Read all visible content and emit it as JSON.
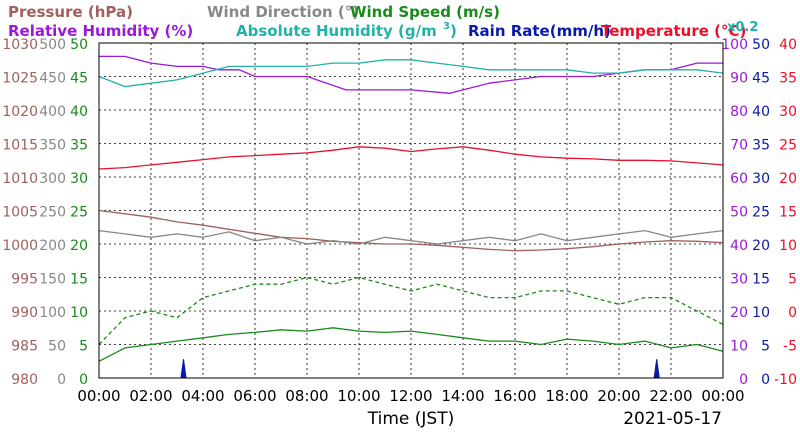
{
  "header": {
    "row1": [
      {
        "text": "Pressure (hPa)",
        "color": "#a0605e"
      },
      {
        "text": "Wind Direction (°)",
        "color": "#888888"
      },
      {
        "text": "Wind Speed (m/s)",
        "color": "#1a8a1a"
      }
    ],
    "row2": [
      {
        "text": "Relative Humidity (%)",
        "color": "#9a19d8"
      },
      {
        "text": "Absolute Humidity (g/m",
        "color": "#20b2aa"
      },
      {
        "text": "3",
        "color": "#20b2aa"
      },
      {
        "text": ")",
        "color": "#20b2aa"
      },
      {
        "text": "Rain Rate(mm/h)",
        "color": "#0a1aa8"
      },
      {
        "text": "Temperature (°C)",
        "color": "#e8102a"
      }
    ],
    "abs_humidity_scale": "x0.2"
  },
  "chart_data": {
    "type": "line",
    "xlabel": "Time (JST)",
    "date": "2021-05-17",
    "x_ticks": [
      "00:00",
      "02:00",
      "04:00",
      "06:00",
      "08:00",
      "10:00",
      "12:00",
      "14:00",
      "16:00",
      "18:00",
      "20:00",
      "22:00",
      "00:00"
    ],
    "x_range_hours": [
      0,
      24
    ],
    "grid": true,
    "axes": {
      "pressure": {
        "ticks": [
          "980",
          "985",
          "990",
          "995",
          "1000",
          "1005",
          "1010",
          "1015",
          "1020",
          "1025",
          "1030"
        ],
        "range": [
          980,
          1030
        ],
        "color": "#a0605e"
      },
      "wind_direction": {
        "ticks": [
          "0",
          "50",
          "100",
          "150",
          "200",
          "250",
          "300",
          "350",
          "400",
          "450",
          "500"
        ],
        "range": [
          0,
          500
        ],
        "color": "#888888"
      },
      "wind_speed": {
        "ticks": [
          "0",
          "5",
          "10",
          "15",
          "20",
          "25",
          "30",
          "35",
          "40",
          "45",
          "50"
        ],
        "range": [
          0,
          50
        ],
        "color": "#1a8a1a"
      },
      "relative_humidity": {
        "ticks": [
          "0",
          "10",
          "20",
          "30",
          "40",
          "50",
          "60",
          "70",
          "80",
          "90",
          "100"
        ],
        "range": [
          0,
          100
        ],
        "color": "#9a19d8"
      },
      "rain_rate": {
        "ticks": [
          "0",
          "5",
          "10",
          "15",
          "20",
          "25",
          "30",
          "35",
          "40",
          "45",
          "50"
        ],
        "range": [
          0,
          50
        ],
        "color": "#0a1aa8"
      },
      "temperature": {
        "ticks": [
          "-10",
          "-5",
          "0",
          "5",
          "10",
          "15",
          "20",
          "25",
          "30",
          "35",
          "40"
        ],
        "range": [
          -10,
          40
        ],
        "color": "#e8102a"
      }
    },
    "series": [
      {
        "key": "relative_humidity",
        "color": "#9a19d8",
        "axis": "relative_humidity",
        "x": [
          0,
          1,
          2,
          3,
          4,
          4.6,
          5.4,
          6,
          7,
          8,
          9.5,
          10.5,
          12,
          13.5,
          14,
          15,
          17,
          19,
          20,
          21,
          22,
          23,
          24
        ],
        "y": [
          96,
          96,
          94,
          93,
          93,
          92,
          92,
          90,
          90,
          90,
          86,
          86,
          86,
          85,
          86,
          88,
          90,
          90,
          91,
          92,
          92,
          94,
          94
        ]
      },
      {
        "key": "absolute_humidity",
        "color": "#20b2aa",
        "axis": "relative_humidity",
        "x": [
          0,
          1,
          2,
          3,
          3.5,
          4,
          5,
          6,
          7,
          8,
          9,
          10,
          11,
          12,
          13,
          14,
          15,
          16,
          17,
          18,
          19,
          20,
          21,
          22,
          23,
          24
        ],
        "y": [
          90,
          87,
          88,
          89,
          90,
          91,
          93,
          93,
          93,
          93,
          94,
          94,
          95,
          95,
          94,
          93,
          92,
          92,
          92,
          92,
          91,
          91,
          92,
          92,
          92,
          91
        ]
      },
      {
        "key": "temperature",
        "color": "#e8102a",
        "axis": "temperature",
        "x": [
          0,
          1,
          2,
          3,
          4,
          5,
          6,
          7,
          8,
          9,
          10,
          11,
          12,
          13,
          14,
          15,
          16,
          17,
          18,
          19,
          20,
          21,
          22,
          23,
          24
        ],
        "y": [
          21.2,
          21.4,
          21.8,
          22.2,
          22.6,
          23.0,
          23.2,
          23.4,
          23.6,
          24.0,
          24.5,
          24.3,
          23.8,
          24.2,
          24.5,
          24.0,
          23.4,
          23.0,
          22.8,
          22.7,
          22.5,
          22.5,
          22.4,
          22.1,
          21.8
        ]
      },
      {
        "key": "pressure",
        "color": "#a0605e",
        "axis": "pressure",
        "x": [
          0,
          1,
          2,
          3,
          4,
          5,
          6,
          7,
          8,
          9,
          10,
          11,
          12,
          13,
          14,
          15,
          16,
          17,
          18,
          19,
          20,
          21,
          22,
          23,
          24
        ],
        "y": [
          1005,
          1004.5,
          1004,
          1003.3,
          1002.8,
          1002.2,
          1001.6,
          1001,
          1000.8,
          1000.4,
          1000.2,
          1000,
          1000,
          999.8,
          999.5,
          999.2,
          999.0,
          999.1,
          999.3,
          999.6,
          1000,
          1000.3,
          1000.5,
          1000.4,
          1000.2
        ]
      },
      {
        "key": "wind_direction",
        "color": "#888888",
        "axis": "wind_direction",
        "x": [
          0,
          1,
          2,
          3,
          4,
          5,
          6,
          7,
          8,
          9,
          10,
          11,
          12,
          13,
          14,
          15,
          16,
          17,
          18,
          19,
          20,
          21,
          22,
          23,
          24
        ],
        "y": [
          220,
          215,
          210,
          215,
          210,
          218,
          205,
          210,
          200,
          205,
          200,
          210,
          205,
          200,
          205,
          210,
          205,
          215,
          205,
          210,
          215,
          220,
          210,
          215,
          220
        ]
      },
      {
        "key": "wind_speed_avg",
        "color": "#1a8a1a",
        "axis": "wind_speed",
        "dash": false,
        "x": [
          0,
          1,
          2,
          3,
          4,
          5,
          6,
          7,
          8,
          9,
          10,
          11,
          12,
          13,
          14,
          15,
          16,
          17,
          18,
          19,
          20,
          21,
          22,
          23,
          24
        ],
        "y": [
          2.5,
          4.5,
          5.0,
          5.5,
          6.0,
          6.5,
          6.8,
          7.2,
          7.0,
          7.5,
          7.0,
          6.8,
          7.0,
          6.5,
          6.0,
          5.5,
          5.5,
          5.0,
          5.8,
          5.5,
          5.0,
          5.5,
          4.5,
          5.0,
          4.0
        ]
      },
      {
        "key": "wind_speed_gust",
        "color": "#1a8a1a",
        "axis": "wind_speed",
        "dash": true,
        "x": [
          0,
          1,
          2,
          3,
          4,
          5,
          6,
          7,
          8,
          9,
          10,
          11,
          12,
          13,
          14,
          15,
          16,
          17,
          18,
          19,
          20,
          21,
          22,
          23,
          24
        ],
        "y": [
          5,
          9,
          10,
          9,
          12,
          13,
          14,
          14,
          15,
          14,
          15,
          14,
          13,
          14,
          13,
          12,
          12,
          13,
          13,
          12,
          11,
          12,
          12,
          10,
          8
        ]
      },
      {
        "key": "rain_rate",
        "color": "#0a1aa8",
        "axis": "rain_rate",
        "x": [
          0,
          3.15,
          3.25,
          3.35,
          21.35,
          21.45,
          21.55,
          24
        ],
        "y": [
          0,
          0,
          2.8,
          0,
          0,
          2.8,
          0,
          0
        ]
      }
    ]
  }
}
